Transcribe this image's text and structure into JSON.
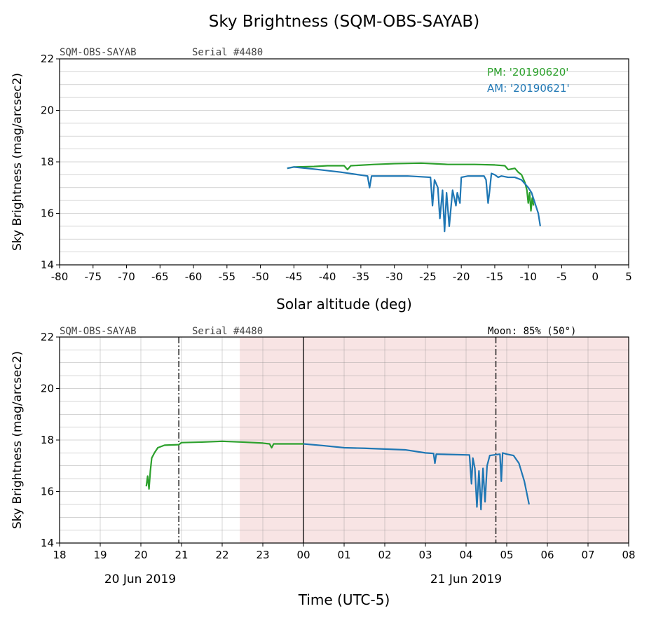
{
  "title": "Sky Brightness (SQM-OBS-SAYAB)",
  "chart_data": [
    {
      "type": "line",
      "title": "",
      "header_left": "SQM-OBS-SAYAB",
      "header_serial": "Serial #4480",
      "xlabel": "Solar altitude (deg)",
      "ylabel": "Sky Brightness (mag/arcsec2)",
      "xlim": [
        -80,
        5
      ],
      "ylim": [
        14,
        22
      ],
      "xticks": [
        "-80",
        "-75",
        "-70",
        "-65",
        "-60",
        "-55",
        "-50",
        "-45",
        "-40",
        "-35",
        "-30",
        "-25",
        "-20",
        "-15",
        "-10",
        "-5",
        "0",
        "5"
      ],
      "yticks": [
        "14",
        "16",
        "18",
        "20",
        "22"
      ],
      "grid": "horizontal minor",
      "legend_position": "top-right",
      "series": [
        {
          "name": "PM: '20190620'",
          "color": "#2ca02c",
          "points": [
            [
              -46,
              17.75
            ],
            [
              -45,
              17.8
            ],
            [
              -42,
              17.82
            ],
            [
              -40,
              17.85
            ],
            [
              -37.5,
              17.85
            ],
            [
              -37,
              17.7
            ],
            [
              -36.5,
              17.85
            ],
            [
              -33,
              17.9
            ],
            [
              -30,
              17.93
            ],
            [
              -26,
              17.95
            ],
            [
              -22,
              17.9
            ],
            [
              -18,
              17.9
            ],
            [
              -15,
              17.88
            ],
            [
              -13.5,
              17.85
            ],
            [
              -13,
              17.7
            ],
            [
              -12,
              17.75
            ],
            [
              -11.5,
              17.6
            ],
            [
              -11,
              17.5
            ],
            [
              -10.5,
              17.2
            ],
            [
              -10.2,
              16.9
            ],
            [
              -10,
              16.4
            ],
            [
              -9.8,
              16.8
            ],
            [
              -9.6,
              16.1
            ],
            [
              -9.4,
              16.6
            ],
            [
              -9.2,
              16.3
            ]
          ]
        },
        {
          "name": "AM: '20190621'",
          "color": "#1f77b4",
          "points": [
            [
              -8.2,
              15.5
            ],
            [
              -8.5,
              16.0
            ],
            [
              -9,
              16.4
            ],
            [
              -9.5,
              16.8
            ],
            [
              -10,
              17.0
            ],
            [
              -11,
              17.3
            ],
            [
              -12,
              17.4
            ],
            [
              -13,
              17.4
            ],
            [
              -14,
              17.45
            ],
            [
              -14.5,
              17.4
            ],
            [
              -15,
              17.5
            ],
            [
              -15.5,
              17.55
            ],
            [
              -15.8,
              16.8
            ],
            [
              -16,
              16.4
            ],
            [
              -16.3,
              17.3
            ],
            [
              -16.6,
              17.45
            ],
            [
              -19,
              17.45
            ],
            [
              -20,
              17.4
            ],
            [
              -20.2,
              16.4
            ],
            [
              -20.6,
              16.8
            ],
            [
              -20.8,
              16.3
            ],
            [
              -21.3,
              16.9
            ],
            [
              -21.8,
              15.5
            ],
            [
              -22.2,
              16.8
            ],
            [
              -22.5,
              15.3
            ],
            [
              -22.8,
              16.9
            ],
            [
              -23.2,
              15.8
            ],
            [
              -23.5,
              17.0
            ],
            [
              -24,
              17.3
            ],
            [
              -24.3,
              16.3
            ],
            [
              -24.6,
              17.4
            ],
            [
              -28,
              17.45
            ],
            [
              -33.4,
              17.45
            ],
            [
              -33.7,
              17.0
            ],
            [
              -34,
              17.45
            ],
            [
              -38,
              17.6
            ],
            [
              -42,
              17.72
            ],
            [
              -45,
              17.8
            ],
            [
              -46,
              17.75
            ]
          ]
        }
      ]
    },
    {
      "type": "line",
      "title": "",
      "header_left": "SQM-OBS-SAYAB",
      "header_serial": "Serial #4480",
      "header_moon": "Moon: 85% (50°)",
      "xlabel": "Time (UTC-5)",
      "ylabel": "Sky Brightness (mag/arcsec2)",
      "xlim": [
        "2019-06-20T18:00",
        "2019-06-21T08:00"
      ],
      "ylim": [
        14,
        22
      ],
      "xticks": [
        "18",
        "19",
        "20",
        "21",
        "22",
        "23",
        "00",
        "01",
        "02",
        "03",
        "04",
        "05",
        "06",
        "07",
        "08"
      ],
      "date_labels": [
        "20 Jun 2019",
        "21 Jun 2019"
      ],
      "yticks": [
        "14",
        "16",
        "18",
        "20",
        "22"
      ],
      "grid": "both",
      "night_shading": {
        "start": "2019-06-20T22:26",
        "end": "2019-06-21T08:00",
        "color": "#f8e4e4"
      },
      "midnight_line": "2019-06-21T00:00",
      "dashdot_lines": [
        "2019-06-20T20:56",
        "2019-06-21T04:44"
      ],
      "series": [
        {
          "name": "PM: '20190620'",
          "color": "#2ca02c",
          "points": [
            [
              "20:08",
              16.2
            ],
            [
              "20:10",
              16.6
            ],
            [
              "20:12",
              16.1
            ],
            [
              "20:14",
              16.8
            ],
            [
              "20:16",
              17.3
            ],
            [
              "20:20",
              17.5
            ],
            [
              "20:25",
              17.7
            ],
            [
              "20:35",
              17.8
            ],
            [
              "20:56",
              17.82
            ],
            [
              "21:00",
              17.9
            ],
            [
              "21:30",
              17.92
            ],
            [
              "22:00",
              17.95
            ],
            [
              "22:30",
              17.92
            ],
            [
              "23:00",
              17.88
            ],
            [
              "23:10",
              17.85
            ],
            [
              "23:13",
              17.7
            ],
            [
              "23:16",
              17.85
            ],
            [
              "23:40",
              17.85
            ],
            [
              "24:00",
              17.85
            ]
          ]
        },
        {
          "name": "AM: '20190621'",
          "color": "#1f77b4",
          "points": [
            [
              "24:00",
              17.85
            ],
            [
              "24:30",
              17.78
            ],
            [
              "25:00",
              17.7
            ],
            [
              "25:30",
              17.68
            ],
            [
              "26:00",
              17.65
            ],
            [
              "26:30",
              17.62
            ],
            [
              "27:00",
              17.5
            ],
            [
              "27:12",
              17.48
            ],
            [
              "27:14",
              17.1
            ],
            [
              "27:16",
              17.45
            ],
            [
              "28:05",
              17.42
            ],
            [
              "28:08",
              16.3
            ],
            [
              "28:10",
              17.3
            ],
            [
              "28:13",
              16.9
            ],
            [
              "28:16",
              15.4
            ],
            [
              "28:19",
              16.8
            ],
            [
              "28:22",
              15.3
            ],
            [
              "28:25",
              16.9
            ],
            [
              "28:28",
              15.6
            ],
            [
              "28:31",
              17.0
            ],
            [
              "28:35",
              17.4
            ],
            [
              "28:50",
              17.45
            ],
            [
              "28:52",
              16.4
            ],
            [
              "28:54",
              17.5
            ],
            [
              "29:00",
              17.45
            ],
            [
              "29:10",
              17.4
            ],
            [
              "29:18",
              17.1
            ],
            [
              "29:26",
              16.4
            ],
            [
              "29:33",
              15.5
            ]
          ]
        }
      ]
    }
  ]
}
